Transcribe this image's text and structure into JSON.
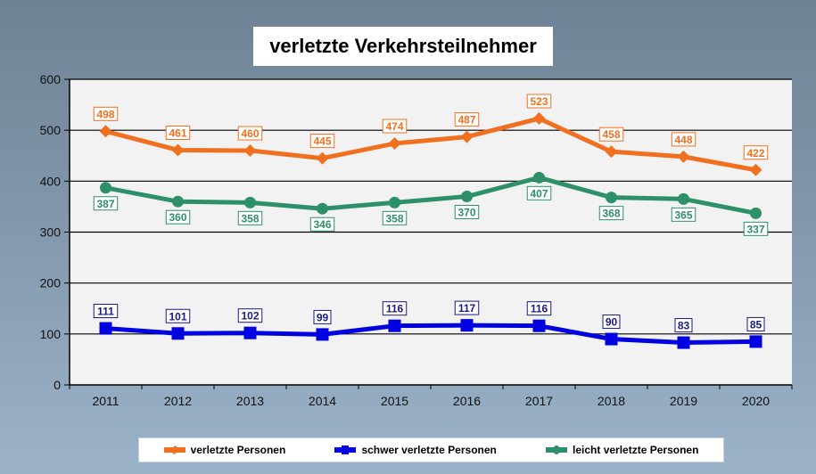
{
  "chart_data": {
    "type": "line",
    "title": "verletzte Verkehrsteilnehmer",
    "xlabel": "",
    "ylabel": "",
    "categories": [
      "2011",
      "2012",
      "2013",
      "2014",
      "2015",
      "2016",
      "2017",
      "2018",
      "2019",
      "2020"
    ],
    "ylim": [
      0,
      600
    ],
    "yticks": [
      0,
      100,
      200,
      300,
      400,
      500,
      600
    ],
    "ytick_labels": [
      "0",
      "100",
      "200",
      "300",
      "400",
      "500",
      "600"
    ],
    "grid": true,
    "legend_position": "bottom",
    "series": [
      {
        "name": "verletzte Personen",
        "color": "#f07020",
        "marker": "diamond",
        "label_position": "above",
        "values": [
          498,
          461,
          460,
          445,
          474,
          487,
          523,
          458,
          448,
          422
        ]
      },
      {
        "name": "schwer verletzte Personen",
        "color": "#0000e0",
        "label_color": "#1a1a80",
        "marker": "square",
        "label_position": "above",
        "values": [
          111,
          101,
          102,
          99,
          116,
          117,
          116,
          90,
          83,
          85
        ]
      },
      {
        "name": "leicht verletzte Personen",
        "color": "#2e9068",
        "marker": "circle",
        "label_position": "below",
        "values": [
          387,
          360,
          358,
          346,
          358,
          370,
          407,
          368,
          365,
          337
        ]
      }
    ]
  }
}
